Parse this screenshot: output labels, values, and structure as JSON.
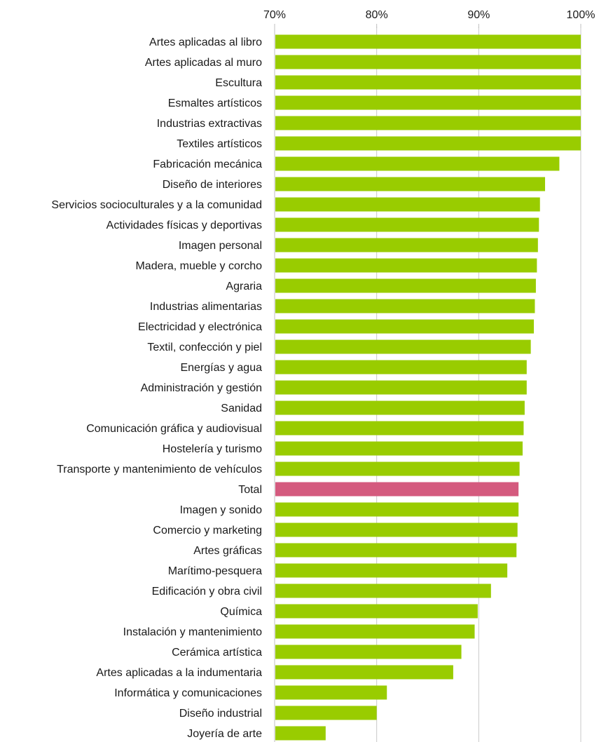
{
  "chart_data": {
    "type": "bar",
    "orientation": "horizontal",
    "title": "",
    "xlabel": "",
    "ylabel": "",
    "xlim": [
      70,
      100
    ],
    "x_ticks": [
      "70%",
      "80%",
      "90%",
      "100%"
    ],
    "x_tick_values": [
      70,
      80,
      90,
      100
    ],
    "grid": true,
    "legend": "none",
    "colors": {
      "bar": "#99cc00",
      "highlight": "#d45a7e"
    },
    "highlight_category": "Total",
    "categories": [
      "Artes aplicadas al libro",
      "Artes aplicadas al muro",
      "Escultura",
      "Esmaltes artísticos",
      "Industrias extractivas",
      "Textiles artísticos",
      "Fabricación mecánica",
      "Diseño de interiores",
      "Servicios socioculturales y a la comunidad",
      "Actividades físicas y deportivas",
      "Imagen personal",
      "Madera, mueble y corcho",
      "Agraria",
      "Industrias alimentarias",
      "Electricidad y electrónica",
      "Textil, confección y piel",
      "Energías y agua",
      "Administración y gestión",
      "Sanidad",
      "Comunicación gráfica y audiovisual",
      "Hostelería y turismo",
      "Transporte y mantenimiento de vehículos",
      "Total",
      "Imagen y sonido",
      "Comercio y marketing",
      "Artes gráficas",
      "Marítimo-pesquera",
      "Edificación y obra civil",
      "Química",
      "Instalación y mantenimiento",
      "Cerámica artística",
      "Artes aplicadas a la indumentaria",
      "Informática y comunicaciones",
      "Diseño industrial",
      "Joyería de arte"
    ],
    "values": [
      100,
      100,
      100,
      100,
      100,
      100,
      97.9,
      96.5,
      96.0,
      95.9,
      95.8,
      95.7,
      95.6,
      95.5,
      95.4,
      95.1,
      94.7,
      94.7,
      94.5,
      94.4,
      94.3,
      94.0,
      93.9,
      93.9,
      93.8,
      93.7,
      92.8,
      91.2,
      89.9,
      89.6,
      88.3,
      87.5,
      81.0,
      80.0,
      75.0
    ]
  }
}
